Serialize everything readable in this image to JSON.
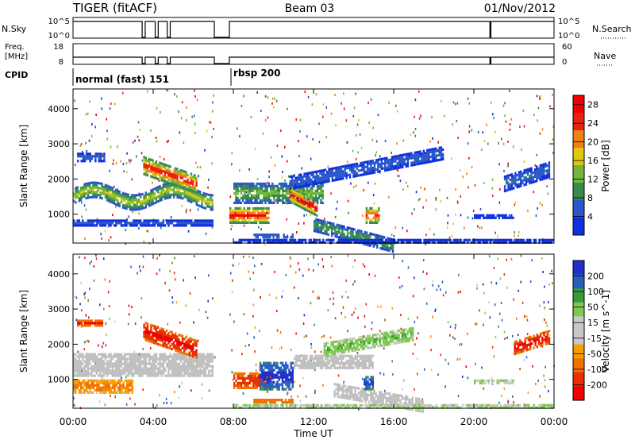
{
  "header": {
    "station": "TIGER (fitACF)",
    "beam": "Beam 03",
    "date": "01/Nov/2012"
  },
  "strips": {
    "nsky_label": "N.Sky",
    "nsky_ticks": [
      "10^5",
      "10^0"
    ],
    "nsearch_label": "N.Search",
    "nsearch_ticks": [
      "10^5",
      "10^0"
    ],
    "freq_label_1": "Freq.",
    "freq_label_2": "[MHz]",
    "freq_ticks": [
      "18",
      "8"
    ],
    "nave_label": "Nave",
    "nave_ticks": [
      "60",
      "0"
    ],
    "cpid_label": "CPID",
    "cpid_modes": [
      {
        "label": "normal (fast) 151",
        "start_hour": 0.0
      },
      {
        "label": "rbsp 200",
        "start_hour": 8.0
      }
    ],
    "gaps_hours": [
      [
        3.45,
        3.6
      ],
      [
        4.1,
        4.25
      ],
      [
        4.7,
        4.85
      ],
      [
        7.05,
        7.8
      ],
      [
        20.8,
        20.85
      ]
    ]
  },
  "xaxis": {
    "label": "Time UT",
    "ticks": [
      "00:00",
      "04:00",
      "08:00",
      "12:00",
      "16:00",
      "20:00",
      "00:00"
    ],
    "range_hours": [
      0,
      24
    ]
  },
  "colors": {
    "power_scale": [
      "#1030e0",
      "#2a58c8",
      "#3a8a50",
      "#72b63a",
      "#e0c810",
      "#f08018",
      "#e82010",
      "#f00000"
    ],
    "velocity_scale": [
      "#2030c8",
      "#2860c0",
      "#3a9a3a",
      "#80c850",
      "#c8c8c8",
      "#c8c8c8",
      "#f5a000",
      "#f07000",
      "#e83000",
      "#f00000"
    ],
    "ground_scatter": "#c0c0c0"
  },
  "chart_data": [
    {
      "type": "heatmap",
      "title": "",
      "xlabel": "",
      "ylabel": "Slant Range [km]",
      "xlim": [
        0,
        24
      ],
      "ylim": [
        180,
        4560
      ],
      "yticks": [
        "1000",
        "2000",
        "3000",
        "4000"
      ],
      "colorbar_label": "Power [dB]",
      "colorbar_ticks": [
        "4",
        "8",
        "12",
        "16",
        "20",
        "24",
        "28"
      ],
      "color_range": [
        0,
        30
      ],
      "regions": [
        {
          "t": [
            0.0,
            7.0
          ],
          "r": [
            1250,
            1750
          ],
          "v": 13,
          "shape": "wave",
          "amp": 180,
          "period": 4.0
        },
        {
          "t": [
            0.0,
            7.0
          ],
          "r": [
            650,
            850
          ],
          "v": 5,
          "shape": "band"
        },
        {
          "t": [
            0.2,
            1.6
          ],
          "r": [
            2500,
            2750
          ],
          "v": 6,
          "shape": "band"
        },
        {
          "t": [
            3.5,
            6.2
          ],
          "r": [
            2100,
            2650
          ],
          "v": 22,
          "shape": "slope",
          "slope": -200
        },
        {
          "t": [
            7.8,
            9.8
          ],
          "r": [
            700,
            1200
          ],
          "v": 23,
          "shape": "band"
        },
        {
          "t": [
            8.0,
            12.5
          ],
          "r": [
            1300,
            1900
          ],
          "v": 11,
          "shape": "band"
        },
        {
          "t": [
            10.8,
            12.2
          ],
          "r": [
            1300,
            1800
          ],
          "v": 24,
          "shape": "slope",
          "slope": -300
        },
        {
          "t": [
            12.0,
            16.0
          ],
          "r": [
            500,
            900
          ],
          "v": 10,
          "shape": "slope",
          "slope": -150
        },
        {
          "t": [
            14.6,
            15.3
          ],
          "r": [
            700,
            1200
          ],
          "v": 22,
          "shape": "band"
        },
        {
          "t": [
            10.8,
            18.5
          ],
          "r": [
            1700,
            2100
          ],
          "v": 6,
          "shape": "slope",
          "slope": 110
        },
        {
          "t": [
            9.0,
            11.0
          ],
          "r": [
            330,
            450
          ],
          "v": 12,
          "shape": "band"
        },
        {
          "t": [
            20.0,
            22.0
          ],
          "r": [
            850,
            1000
          ],
          "v": 5,
          "shape": "band"
        },
        {
          "t": [
            21.5,
            23.8
          ],
          "r": [
            1600,
            2100
          ],
          "v": 6,
          "shape": "slope",
          "slope": 180
        },
        {
          "t": [
            8.0,
            24.0
          ],
          "r": [
            190,
            300
          ],
          "v": 6,
          "shape": "band"
        }
      ]
    },
    {
      "type": "heatmap",
      "title": "",
      "xlabel": "Time UT",
      "ylabel": "Slant Range [km]",
      "xlim": [
        0,
        24
      ],
      "ylim": [
        180,
        4560
      ],
      "yticks": [
        "1000",
        "2000",
        "3000",
        "4000"
      ],
      "colorbar_label": "Velocity [m s^-1]",
      "colorbar_ticks": [
        "200",
        "100",
        "50",
        "15",
        "-15",
        "-50",
        "-100",
        "-200"
      ],
      "color_range": [
        -250,
        250
      ],
      "regions": [
        {
          "t": [
            0.0,
            7.0
          ],
          "r": [
            1050,
            1750
          ],
          "v": 0,
          "shape": "band",
          "gs": true
        },
        {
          "t": [
            0.0,
            3.0
          ],
          "r": [
            600,
            1000
          ],
          "v": -60,
          "shape": "band"
        },
        {
          "t": [
            0.2,
            1.5
          ],
          "r": [
            2500,
            2700
          ],
          "v": -180,
          "shape": "band"
        },
        {
          "t": [
            3.5,
            6.2
          ],
          "r": [
            2100,
            2650
          ],
          "v": -200,
          "shape": "slope",
          "slope": -200
        },
        {
          "t": [
            8.0,
            10.0
          ],
          "r": [
            700,
            1200
          ],
          "v": -150,
          "shape": "band"
        },
        {
          "t": [
            9.3,
            11.0
          ],
          "r": [
            700,
            1500
          ],
          "v": 220,
          "shape": "band"
        },
        {
          "t": [
            11.0,
            15.0
          ],
          "r": [
            1300,
            1700
          ],
          "v": 0,
          "shape": "band",
          "gs": true
        },
        {
          "t": [
            13.0,
            17.5
          ],
          "r": [
            500,
            900
          ],
          "v": 0,
          "shape": "slope",
          "slope": -100,
          "gs": true
        },
        {
          "t": [
            14.5,
            15.0
          ],
          "r": [
            700,
            1100
          ],
          "v": 200,
          "shape": "band"
        },
        {
          "t": [
            12.5,
            17.0
          ],
          "r": [
            1650,
            2050
          ],
          "v": 40,
          "shape": "slope",
          "slope": 100
        },
        {
          "t": [
            9.0,
            11.0
          ],
          "r": [
            330,
            450
          ],
          "v": -180,
          "shape": "band"
        },
        {
          "t": [
            20.0,
            22.0
          ],
          "r": [
            850,
            1000
          ],
          "v": 30,
          "shape": "band"
        },
        {
          "t": [
            22.0,
            23.8
          ],
          "r": [
            1700,
            2100
          ],
          "v": -200,
          "shape": "slope",
          "slope": 180
        },
        {
          "t": [
            8.0,
            24.0
          ],
          "r": [
            190,
            300
          ],
          "v": 30,
          "shape": "band"
        }
      ]
    }
  ]
}
